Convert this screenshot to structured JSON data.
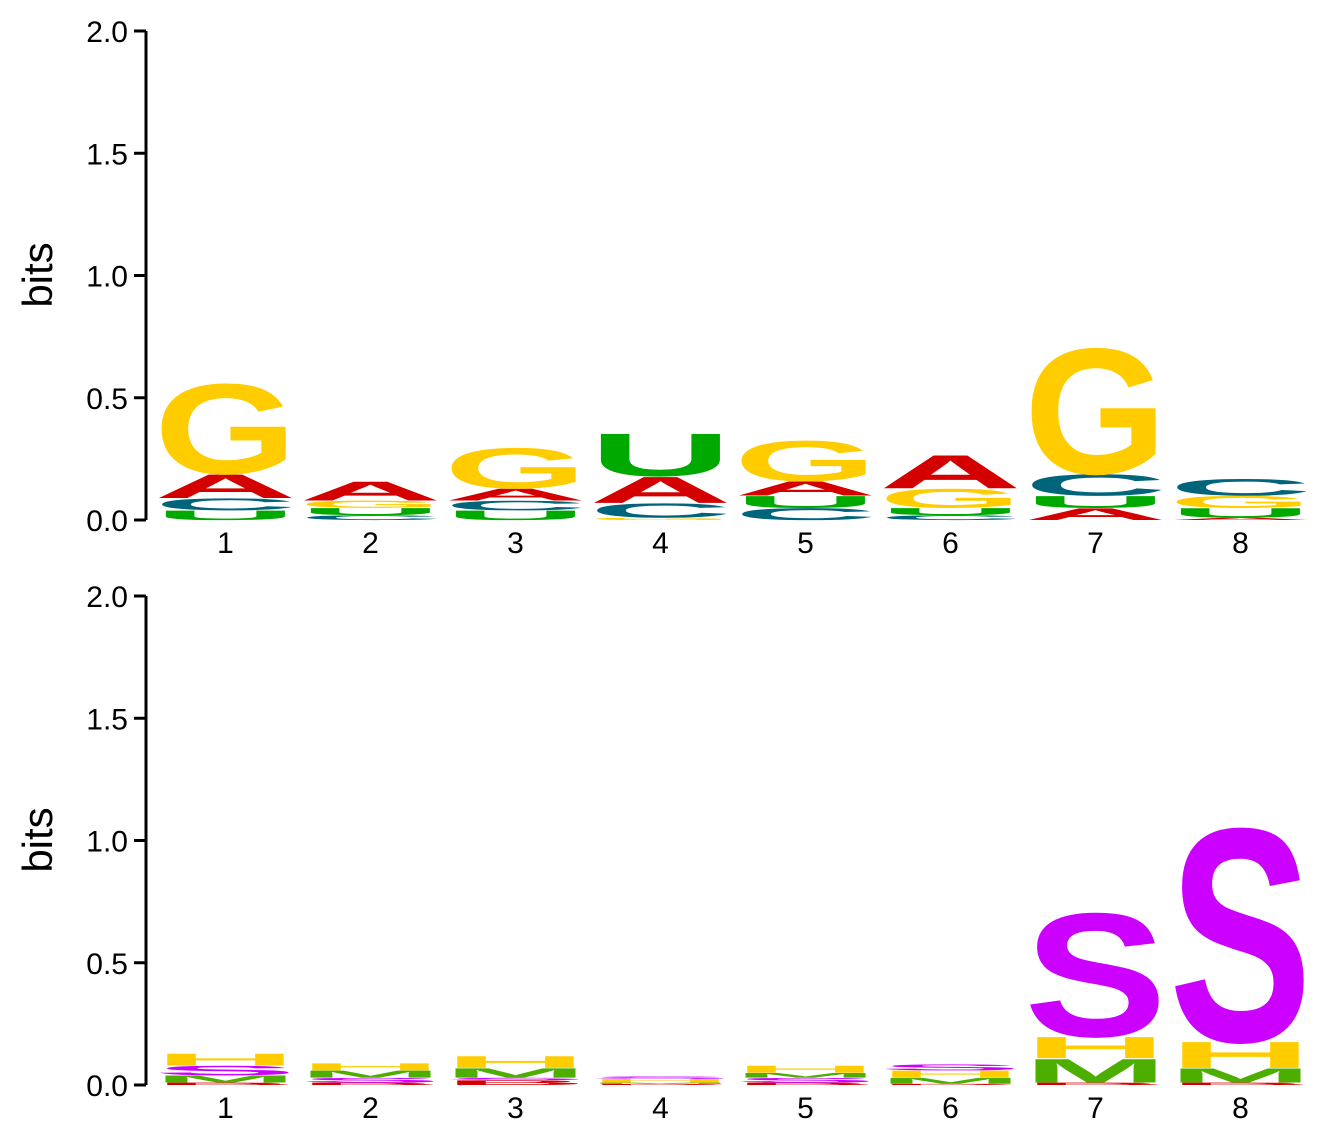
{
  "chart_data": [
    {
      "type": "sequence-logo",
      "alphabet": "RNA",
      "ylabel": "bits",
      "ylim": [
        0,
        2.0
      ],
      "yticks": [
        "0.0",
        "0.5",
        "1.0",
        "1.5",
        "2.0"
      ],
      "positions": [
        "1",
        "2",
        "3",
        "4",
        "5",
        "6",
        "7",
        "8"
      ],
      "colors": {
        "A": "#d40000",
        "C": "#00647a",
        "G": "#ffcc00",
        "U": "#00a900"
      },
      "stacks": [
        [
          {
            "letter": "U",
            "bits": 0.04
          },
          {
            "letter": "C",
            "bits": 0.05
          },
          {
            "letter": "A",
            "bits": 0.1
          },
          {
            "letter": "G",
            "bits": 0.38
          }
        ],
        [
          {
            "letter": "C",
            "bits": 0.02
          },
          {
            "letter": "U",
            "bits": 0.03
          },
          {
            "letter": "G",
            "bits": 0.03
          },
          {
            "letter": "A",
            "bits": 0.08
          }
        ],
        [
          {
            "letter": "U",
            "bits": 0.04
          },
          {
            "letter": "C",
            "bits": 0.04
          },
          {
            "letter": "A",
            "bits": 0.05
          },
          {
            "letter": "G",
            "bits": 0.17
          }
        ],
        [
          {
            "letter": "G",
            "bits": 0.01
          },
          {
            "letter": "C",
            "bits": 0.06
          },
          {
            "letter": "A",
            "bits": 0.11
          },
          {
            "letter": "U",
            "bits": 0.18
          }
        ],
        [
          {
            "letter": "C",
            "bits": 0.05
          },
          {
            "letter": "U",
            "bits": 0.05
          },
          {
            "letter": "A",
            "bits": 0.06
          },
          {
            "letter": "G",
            "bits": 0.17
          }
        ],
        [
          {
            "letter": "C",
            "bits": 0.02
          },
          {
            "letter": "U",
            "bits": 0.03
          },
          {
            "letter": "G",
            "bits": 0.08
          },
          {
            "letter": "A",
            "bits": 0.14
          }
        ],
        [
          {
            "letter": "A",
            "bits": 0.05
          },
          {
            "letter": "U",
            "bits": 0.05
          },
          {
            "letter": "C",
            "bits": 0.09
          },
          {
            "letter": "G",
            "bits": 0.53
          }
        ],
        [
          {
            "letter": "A",
            "bits": 0.01
          },
          {
            "letter": "U",
            "bits": 0.04
          },
          {
            "letter": "G",
            "bits": 0.05
          },
          {
            "letter": "C",
            "bits": 0.07
          }
        ]
      ]
    },
    {
      "type": "sequence-logo",
      "alphabet": "structure",
      "ylabel": "bits",
      "ylim": [
        0,
        2.0
      ],
      "yticks": [
        "0.0",
        "0.5",
        "1.0",
        "1.5",
        "2.0"
      ],
      "positions": [
        "1",
        "2",
        "3",
        "4",
        "5",
        "6",
        "7",
        "8"
      ],
      "colors": {
        "B": "#d40000",
        "M": "#4caf00",
        "S": "#cc00ff",
        "H": "#ffcc00"
      },
      "stacks": [
        [
          {
            "letter": "B",
            "bits": 0.01
          },
          {
            "letter": "M",
            "bits": 0.03
          },
          {
            "letter": "S",
            "bits": 0.04
          },
          {
            "letter": "H",
            "bits": 0.05
          }
        ],
        [
          {
            "letter": "B",
            "bits": 0.01
          },
          {
            "letter": "S",
            "bits": 0.02
          },
          {
            "letter": "M",
            "bits": 0.03
          },
          {
            "letter": "H",
            "bits": 0.03
          }
        ],
        [
          {
            "letter": "B",
            "bits": 0.02
          },
          {
            "letter": "S",
            "bits": 0.01
          },
          {
            "letter": "M",
            "bits": 0.04
          },
          {
            "letter": "H",
            "bits": 0.05
          }
        ],
        [
          {
            "letter": "B",
            "bits": 0.005
          },
          {
            "letter": "M",
            "bits": 0.005
          },
          {
            "letter": "H",
            "bits": 0.015
          },
          {
            "letter": "S",
            "bits": 0.01
          }
        ],
        [
          {
            "letter": "B",
            "bits": 0.01
          },
          {
            "letter": "S",
            "bits": 0.02
          },
          {
            "letter": "M",
            "bits": 0.02
          },
          {
            "letter": "H",
            "bits": 0.03
          }
        ],
        [
          {
            "letter": "B",
            "bits": 0.005
          },
          {
            "letter": "M",
            "bits": 0.025
          },
          {
            "letter": "H",
            "bits": 0.03
          },
          {
            "letter": "S",
            "bits": 0.025
          }
        ],
        [
          {
            "letter": "B",
            "bits": 0.01
          },
          {
            "letter": "M",
            "bits": 0.1
          },
          {
            "letter": "H",
            "bits": 0.09
          },
          {
            "letter": "S",
            "bits": 0.52
          }
        ],
        [
          {
            "letter": "B",
            "bits": 0.01
          },
          {
            "letter": "M",
            "bits": 0.06
          },
          {
            "letter": "H",
            "bits": 0.11
          },
          {
            "letter": "S",
            "bits": 0.9
          }
        ]
      ]
    }
  ]
}
